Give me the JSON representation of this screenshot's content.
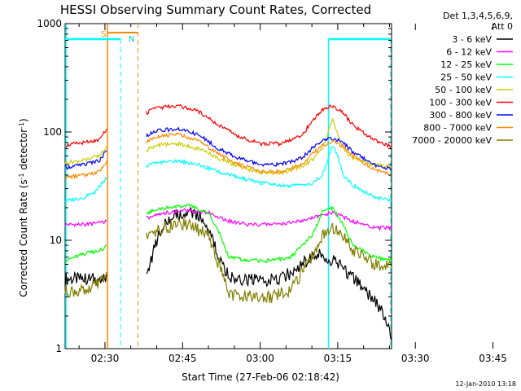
{
  "chart_data": {
    "type": "line",
    "title": "HESSI Observing Summary Count Rates, Corrected",
    "xlabel": "Start Time (27-Feb-06 02:18:42)",
    "ylabel_main": "Corrected Count Rate (s",
    "ylabel_sup1": "-1",
    "ylabel_mid": " detector",
    "ylabel_sup2": "-1",
    "ylabel_end": ")",
    "y_scale": "log",
    "ylim": [
      1,
      1000
    ],
    "xlim_minutes": [
      -7.7,
      55.4
    ],
    "x_ticks": [
      {
        "label": "02:30",
        "t": 0
      },
      {
        "label": "02:45",
        "t": 15
      },
      {
        "label": "03:00",
        "t": 30
      },
      {
        "label": "03:15",
        "t": 45
      },
      {
        "label": "03:30",
        "t": 60
      },
      {
        "label": "03:45",
        "t": 75
      }
    ],
    "y_ticks": [
      {
        "label": "1",
        "v": 1
      },
      {
        "label": "10",
        "v": 10
      },
      {
        "label": "100",
        "v": 100
      },
      {
        "label": "1000",
        "v": 1000
      }
    ],
    "legend_header": [
      "Det 1,3,4,5,6,9,",
      "Att 0"
    ],
    "legend_placement": "right",
    "footer_date": "12-Jan-2010 13:18",
    "series": [
      {
        "name": "3 - 6 keV",
        "color": "#000000",
        "x": [
          -7.7,
          -4,
          -1,
          0.5,
          2,
          3.5,
          7,
          8,
          10,
          12,
          14,
          16,
          18,
          20,
          22,
          24,
          26,
          28,
          30,
          32,
          34,
          36,
          38,
          40,
          42,
          44,
          46,
          48,
          50,
          52,
          54,
          55.4
        ],
        "y": [
          4.4,
          4.4,
          4.4,
          4.4,
          null,
          null,
          null,
          4.4,
          10,
          15,
          17,
          18,
          17,
          13,
          7,
          4.5,
          4.3,
          4.3,
          4.3,
          4.3,
          4.5,
          5,
          6,
          7,
          7.5,
          6.5,
          5.5,
          4.5,
          3.5,
          2.8,
          2,
          1.2
        ]
      },
      {
        "name": "6 - 12 keV",
        "color": "#ff00ff",
        "x": [
          -7.7,
          -4,
          -1,
          0.5,
          2,
          3.5,
          7,
          8,
          12,
          16,
          20,
          24,
          28,
          32,
          36,
          40,
          44,
          48,
          52,
          55.4
        ],
        "y": [
          14,
          14,
          14.5,
          15,
          null,
          null,
          null,
          16,
          18,
          19,
          18,
          15,
          14,
          14,
          14.5,
          16,
          18,
          15,
          13,
          13
        ]
      },
      {
        "name": "12 - 25 keV",
        "color": "#00ff00",
        "x": [
          -7.7,
          -4,
          -1,
          0.5,
          2,
          3.5,
          7,
          8,
          12,
          16,
          20,
          22,
          24,
          28,
          32,
          36,
          38,
          40,
          42,
          44,
          46,
          48,
          52,
          55.4
        ],
        "y": [
          6.5,
          7.5,
          8,
          9,
          null,
          null,
          null,
          18,
          20,
          21,
          18,
          12,
          7,
          6.5,
          6.5,
          7,
          9,
          11,
          18,
          20,
          14,
          9,
          7,
          6.5
        ]
      },
      {
        "name": "25 - 50 keV",
        "color": "#00ffff",
        "x": [
          -7.7,
          -4,
          -2,
          -1,
          0.5,
          2,
          3.5,
          7,
          8,
          10,
          14,
          18,
          22,
          26,
          30,
          34,
          38,
          40,
          42,
          43,
          44,
          45,
          46,
          48,
          52,
          55.4
        ],
        "y": [
          23,
          25,
          28,
          32,
          38,
          null,
          null,
          null,
          48,
          52,
          54,
          50,
          43,
          38,
          34,
          32,
          32,
          33,
          40,
          55,
          75,
          60,
          40,
          32,
          25,
          23
        ]
      },
      {
        "name": "50 - 100 keV",
        "color": "#cccc00",
        "x": [
          -7.7,
          -4,
          -1,
          0.5,
          2,
          3.5,
          7,
          8,
          10,
          14,
          18,
          22,
          26,
          30,
          34,
          38,
          40,
          42,
          43,
          44,
          45,
          46,
          48,
          52,
          55.4
        ],
        "y": [
          52,
          55,
          60,
          75,
          null,
          null,
          null,
          68,
          75,
          78,
          70,
          57,
          48,
          42,
          42,
          48,
          55,
          70,
          95,
          130,
          95,
          70,
          57,
          50,
          47
        ]
      },
      {
        "name": "100 - 300 keV",
        "color": "#ff0000",
        "x": [
          -7.7,
          -4,
          -1,
          0.5,
          2,
          3.5,
          7,
          8,
          10,
          14,
          18,
          22,
          26,
          30,
          34,
          38,
          40,
          42,
          44,
          46,
          48,
          52,
          55.4
        ],
        "y": [
          75,
          80,
          85,
          110,
          null,
          null,
          null,
          150,
          165,
          175,
          155,
          115,
          90,
          78,
          78,
          92,
          125,
          160,
          175,
          150,
          115,
          85,
          72
        ]
      },
      {
        "name": "300 - 800 keV",
        "color": "#0000ff",
        "x": [
          -7.7,
          -4,
          -1,
          0.5,
          2,
          3.5,
          7,
          8,
          10,
          14,
          18,
          22,
          26,
          30,
          34,
          38,
          40,
          42,
          44,
          46,
          48,
          52,
          55.4
        ],
        "y": [
          47,
          50,
          55,
          70,
          null,
          null,
          null,
          92,
          102,
          108,
          95,
          70,
          57,
          50,
          50,
          57,
          70,
          82,
          88,
          80,
          65,
          50,
          45
        ]
      },
      {
        "name": "800 - 7000 keV",
        "color": "#ff8800",
        "x": [
          -7.7,
          -4,
          -1,
          0.5,
          2,
          3.5,
          7,
          8,
          10,
          14,
          18,
          22,
          26,
          30,
          34,
          38,
          40,
          42,
          44,
          46,
          48,
          52,
          55.4
        ],
        "y": [
          38,
          40,
          43,
          55,
          null,
          null,
          null,
          82,
          90,
          95,
          83,
          62,
          50,
          43,
          43,
          50,
          62,
          75,
          82,
          74,
          60,
          45,
          40
        ]
      },
      {
        "name": "7000 - 20000 keV",
        "color": "#808000",
        "x": [
          -7.7,
          -4,
          -1,
          0.5,
          2,
          3.5,
          7,
          8,
          12,
          16,
          20,
          22,
          24,
          28,
          32,
          36,
          38,
          40,
          42,
          44,
          46,
          48,
          52,
          55.4
        ],
        "y": [
          3.4,
          3.4,
          4,
          5.5,
          null,
          null,
          null,
          11,
          13.5,
          14,
          11,
          6,
          3.2,
          3.0,
          3.0,
          3.5,
          5,
          7,
          11,
          13,
          11,
          8,
          6,
          5.5
        ]
      }
    ]
  }
}
